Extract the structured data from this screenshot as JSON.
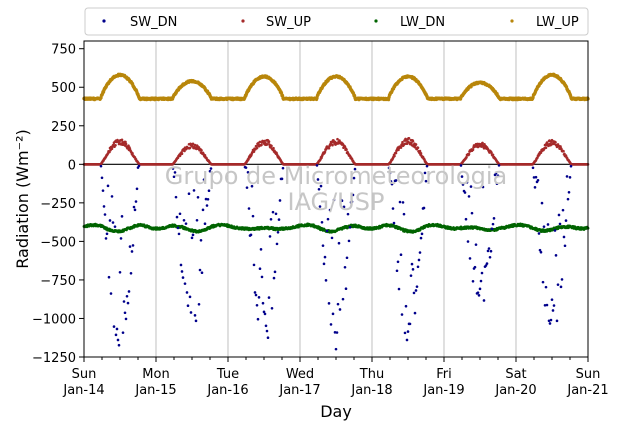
{
  "chart_data": {
    "type": "scatter",
    "xlabel": "Day",
    "ylabel": "Radiation (Wm⁻²)",
    "ylim": [
      -1250,
      800
    ],
    "yticks": [
      -1250,
      -1000,
      -750,
      -500,
      -250,
      0,
      250,
      500,
      750
    ],
    "x_range": [
      "2019-01-14",
      "2019-01-21"
    ],
    "xticks": [
      {
        "day": 0,
        "weekday": "Sun",
        "date": "Jan-14"
      },
      {
        "day": 1,
        "weekday": "Mon",
        "date": "Jan-15"
      },
      {
        "day": 2,
        "weekday": "Tue",
        "date": "Jan-16"
      },
      {
        "day": 3,
        "weekday": "Wed",
        "date": "Jan-17"
      },
      {
        "day": 4,
        "weekday": "Thu",
        "date": "Jan-18"
      },
      {
        "day": 5,
        "weekday": "Fri",
        "date": "Jan-19"
      },
      {
        "day": 6,
        "weekday": "Sat",
        "date": "Jan-20"
      },
      {
        "day": 7,
        "weekday": "Sun",
        "date": "Jan-21"
      }
    ],
    "grid": "vertical-daily",
    "legend_position": "top, outside, 4 columns",
    "watermark": [
      "Grupo de Micrometeorologia",
      "IAG/USP"
    ],
    "series": [
      {
        "name": "SW_DN",
        "color": "#00008b",
        "daily_peak": [
          -1240,
          -1100,
          -1200,
          -1220,
          -1180,
          -950,
          -1140
        ]
      },
      {
        "name": "SW_UP",
        "color": "#a52a2a",
        "daily_peak": [
          150,
          125,
          150,
          150,
          155,
          130,
          145
        ]
      },
      {
        "name": "LW_DN",
        "color": "#006400",
        "mean": -405
      },
      {
        "name": "LW_UP",
        "color": "#b8860b",
        "night": 425,
        "daily_peak": [
          580,
          540,
          570,
          570,
          570,
          530,
          580
        ]
      }
    ]
  }
}
